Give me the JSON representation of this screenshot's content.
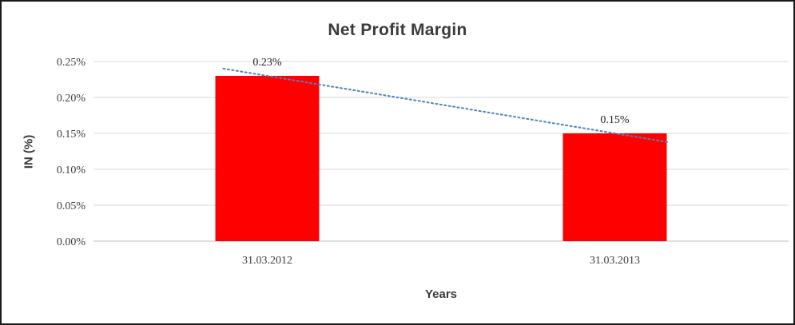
{
  "chart_data": {
    "type": "bar",
    "title": "Net Profit Margin",
    "xlabel": "Years",
    "ylabel": "IN (%)",
    "categories": [
      "31.03.2012",
      "31.03.2013"
    ],
    "values": [
      0.23,
      0.15
    ],
    "data_labels": [
      "0.23%",
      "0.15%"
    ],
    "ylim": [
      0,
      0.25
    ],
    "ytick_step": 0.05,
    "ytick_labels": [
      "0.00%",
      "0.05%",
      "0.10%",
      "0.15%",
      "0.20%",
      "0.25%"
    ],
    "grid": true,
    "legend": "none",
    "bar_color": "#FF0000",
    "trendline_color": "#4F81BD",
    "gridline_color": "#D9D9D9",
    "axis_line_color": "#BFBFBF",
    "trendline": {
      "type": "linear",
      "style": "dotted"
    }
  }
}
